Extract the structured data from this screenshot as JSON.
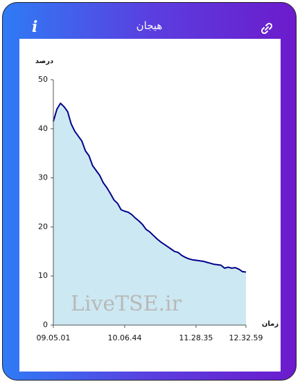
{
  "header_icon": "i",
  "watermark": "LiveTSE.ir",
  "chart_data": {
    "type": "area",
    "title": "هیجان",
    "y_label": "درصد",
    "x_label": "زمان",
    "categories": [
      "09.05.01",
      null,
      null,
      null,
      null,
      null,
      null,
      null,
      null,
      null,
      null,
      null,
      null,
      null,
      null,
      null,
      null,
      null,
      null,
      null,
      "10.06.44",
      null,
      null,
      null,
      null,
      null,
      null,
      null,
      null,
      null,
      null,
      null,
      null,
      null,
      null,
      null,
      null,
      null,
      null,
      null,
      "11.28.35",
      null,
      null,
      null,
      null,
      null,
      null,
      null,
      null,
      null,
      null,
      null,
      null,
      null,
      "12.32.59"
    ],
    "series": [
      {
        "name": "هیجان",
        "color": "#00008b",
        "fill": "#cce8f2",
        "values": [
          41.5,
          44,
          45.2,
          44.5,
          43.5,
          41,
          39.5,
          38.5,
          37.5,
          35.5,
          34.5,
          32.5,
          31.5,
          30.5,
          29,
          28,
          26.8,
          25.5,
          24.8,
          23.5,
          23.2,
          23,
          22.5,
          21.8,
          21.2,
          20.5,
          19.5,
          19,
          18.3,
          17.6,
          17,
          16.5,
          16,
          15.5,
          15,
          14.8,
          14.2,
          13.8,
          13.5,
          13.3,
          13.2,
          13.1,
          13,
          12.8,
          12.6,
          12.4,
          12.3,
          12.2,
          11.6,
          11.8,
          11.6,
          11.7,
          11.4,
          10.9,
          10.8
        ]
      }
    ],
    "ylim": [
      0,
      50
    ],
    "yticks": [
      0,
      10,
      20,
      30,
      40,
      50
    ],
    "grid": false
  }
}
